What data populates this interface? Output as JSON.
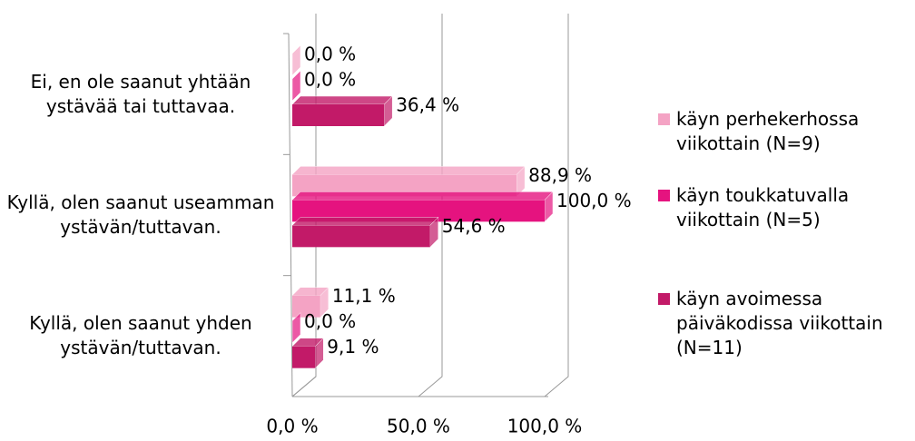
{
  "chart_data": {
    "type": "bar",
    "orientation": "horizontal",
    "three_d": true,
    "categories": [
      "Ei, en ole saanut yhtään ystävää tai tuttavaa.",
      "Kyllä, olen saanut useamman ystävän/tuttavan.",
      "Kyllä, olen saanut yhden ystävän/tuttavan."
    ],
    "series": [
      {
        "name": "käyn perhekerhossa viikottain (N=9)",
        "color": "#f4a3c4",
        "values": [
          0.0,
          88.9,
          11.1
        ],
        "value_labels": [
          "0,0 %",
          "88,9 %",
          "11,1 %"
        ]
      },
      {
        "name": "käyn toukkatuvalla viikottain (N=5)",
        "color": "#e5137f",
        "values": [
          0.0,
          100.0,
          0.0
        ],
        "value_labels": [
          "0,0 %",
          "100,0 %",
          "0,0 %"
        ]
      },
      {
        "name": "käyn avoimessa päiväkodissa viikottain (N=11)",
        "color": "#c21a68",
        "values": [
          36.4,
          54.6,
          9.1
        ],
        "value_labels": [
          "36,4 %",
          "54,6 %",
          "9,1 %"
        ]
      }
    ],
    "xlim": [
      0,
      100
    ],
    "xticks": [
      {
        "value": 0,
        "label": "0,0 %"
      },
      {
        "value": 50,
        "label": "50,0 %"
      },
      {
        "value": 100,
        "label": "100,0 %"
      }
    ],
    "grid": true,
    "legend": "right"
  }
}
